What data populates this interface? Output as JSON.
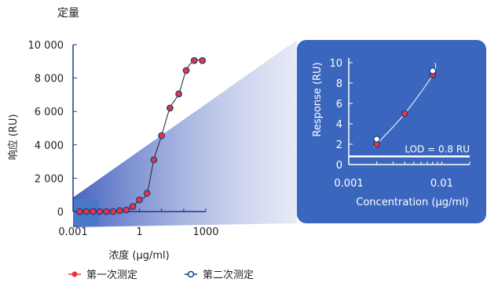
{
  "chart_data": [
    {
      "type": "scatter",
      "title": "定量",
      "xlabel": "浓度 (μg/ml)",
      "ylabel": "响应 (RU)",
      "x_scale": "log",
      "xlim": [
        0.001,
        1000
      ],
      "ylim": [
        0,
        10000
      ],
      "x_ticks": [
        "0.001",
        "1",
        "1000"
      ],
      "y_ticks": [
        "10 000",
        "8 000",
        "6 000",
        "4 000",
        "2 000",
        "0"
      ],
      "legend": [
        {
          "name": "第一次测定",
          "color": "#e8343c"
        },
        {
          "name": "第二次测定",
          "color": "#1a3a8a"
        }
      ],
      "series": [
        {
          "name": "第一次测定",
          "x": [
            0.002,
            0.004,
            0.008,
            0.016,
            0.032,
            0.064,
            0.128,
            0.256,
            0.5,
            1.0,
            2.2,
            4.5,
            10,
            24,
            60,
            130,
            300,
            700
          ],
          "y": [
            0,
            0,
            0,
            0,
            0,
            0,
            50,
            100,
            300,
            700,
            1100,
            3100,
            4550,
            6200,
            7050,
            8450,
            9050,
            9050
          ]
        }
      ]
    },
    {
      "type": "scatter",
      "xlabel": "Concentration (μg/ml)",
      "ylabel": "Response (RU)",
      "x_scale": "log",
      "xlim": [
        0.001,
        0.02
      ],
      "ylim": [
        0,
        10
      ],
      "x_ticks": [
        "0.001",
        "0.01"
      ],
      "y_ticks": [
        "10",
        "8",
        "6",
        "4",
        "2",
        "0"
      ],
      "annotation": "LOD = 0.8 RU",
      "lod": 0.8,
      "series": [
        {
          "name": "第一次测定",
          "x": [
            0.002,
            0.004,
            0.008
          ],
          "y": [
            2.0,
            5.0,
            8.8
          ]
        },
        {
          "name": "第二次测定",
          "x": [
            0.002,
            0.008
          ],
          "y": [
            2.5,
            9.2
          ]
        }
      ]
    }
  ]
}
